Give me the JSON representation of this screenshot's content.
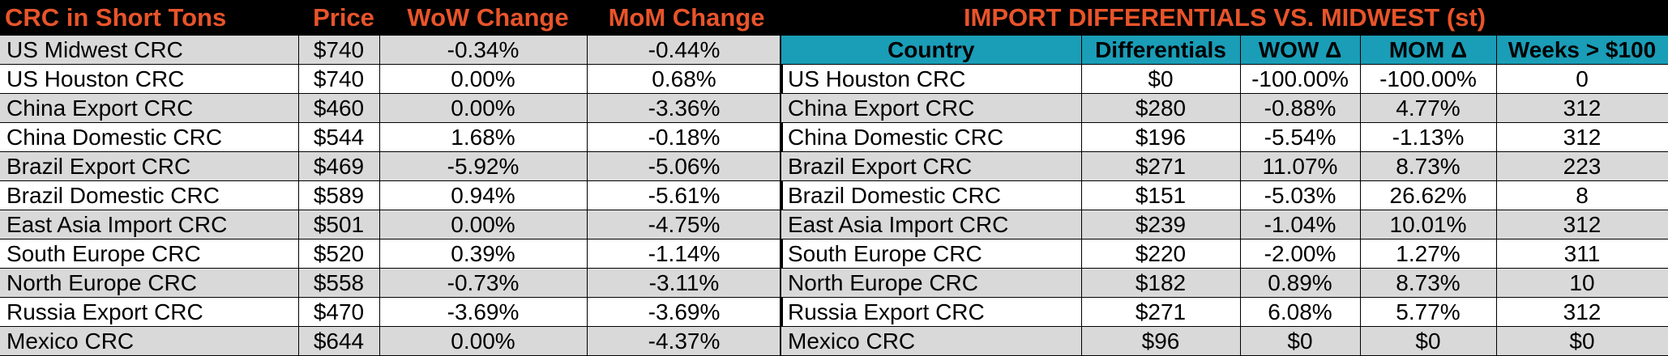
{
  "left": {
    "headers": [
      "CRC in Short Tons",
      "Price",
      "WoW Change",
      "MoM Change"
    ],
    "rows": [
      {
        "name": "US Midwest CRC",
        "price": "$740",
        "wow": "-0.34%",
        "mom": "-0.44%"
      },
      {
        "name": "US Houston CRC",
        "price": "$740",
        "wow": "0.00%",
        "mom": "0.68%"
      },
      {
        "name": "China Export CRC",
        "price": "$460",
        "wow": "0.00%",
        "mom": "-3.36%"
      },
      {
        "name": "China Domestic CRC",
        "price": "$544",
        "wow": "1.68%",
        "mom": "-0.18%"
      },
      {
        "name": "Brazil Export CRC",
        "price": "$469",
        "wow": "-5.92%",
        "mom": "-5.06%"
      },
      {
        "name": "Brazil Domestic CRC",
        "price": "$589",
        "wow": "0.94%",
        "mom": "-5.61%"
      },
      {
        "name": "East Asia Import CRC",
        "price": "$501",
        "wow": "0.00%",
        "mom": "-4.75%"
      },
      {
        "name": "South Europe CRC",
        "price": "$520",
        "wow": "0.39%",
        "mom": "-1.14%"
      },
      {
        "name": "North Europe CRC",
        "price": "$558",
        "wow": "-0.73%",
        "mom": "-3.11%"
      },
      {
        "name": "Russia Export CRC",
        "price": "$470",
        "wow": "-3.69%",
        "mom": "-3.69%"
      },
      {
        "name": "Mexico CRC",
        "price": "$644",
        "wow": "0.00%",
        "mom": "-4.37%"
      }
    ]
  },
  "right": {
    "banner": "IMPORT DIFFERENTIALS VS. MIDWEST (st)",
    "headers": [
      "Country",
      "Differentials",
      "WOW Δ",
      "MOM Δ",
      "Weeks > $100"
    ],
    "rows": [
      {
        "name": "US Houston CRC",
        "diff": "$0",
        "wow": "-100.00%",
        "mom": "-100.00%",
        "weeks": "0"
      },
      {
        "name": "China Export CRC",
        "diff": "$280",
        "wow": "-0.88%",
        "mom": "4.77%",
        "weeks": "312"
      },
      {
        "name": "China Domestic CRC",
        "diff": "$196",
        "wow": "-5.54%",
        "mom": "-1.13%",
        "weeks": "312"
      },
      {
        "name": "Brazil Export CRC",
        "diff": "$271",
        "wow": "11.07%",
        "mom": "8.73%",
        "weeks": "223"
      },
      {
        "name": "Brazil Domestic CRC",
        "diff": "$151",
        "wow": "-5.03%",
        "mom": "26.62%",
        "weeks": "8"
      },
      {
        "name": "East Asia Import CRC",
        "diff": "$239",
        "wow": "-1.04%",
        "mom": "10.01%",
        "weeks": "312"
      },
      {
        "name": "South Europe CRC",
        "diff": "$220",
        "wow": "-2.00%",
        "mom": "1.27%",
        "weeks": "311"
      },
      {
        "name": "North Europe CRC",
        "diff": "$182",
        "wow": "0.89%",
        "mom": "8.73%",
        "weeks": "10"
      },
      {
        "name": "Russia Export CRC",
        "diff": "$271",
        "wow": "6.08%",
        "mom": "5.77%",
        "weeks": "312"
      },
      {
        "name": "Mexico CRC",
        "diff": "$96",
        "wow": "$0",
        "mom": "$0",
        "weeks": "$0"
      }
    ]
  },
  "colors": {
    "title_orange": "#e8542a",
    "header_teal": "#1a9db7",
    "row_shade": "#d9d9d9"
  }
}
